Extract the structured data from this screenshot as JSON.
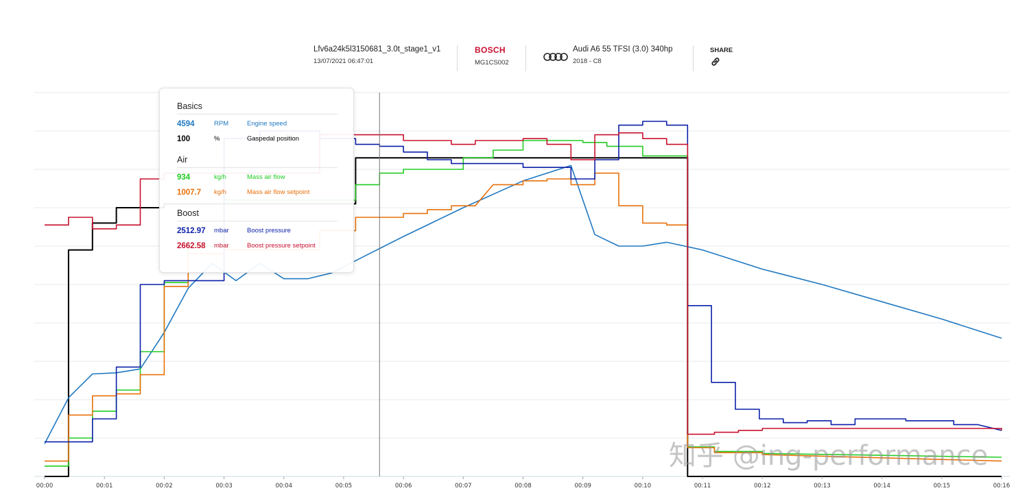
{
  "header": {
    "file_name": "Lfv6a24k5l3150681_3.0t_stage1_v1",
    "date": "13/07/2021 06:47:01",
    "ecu_brand": "BOSCH",
    "ecu_model": "MG1CS002",
    "car_name": "Audi A6 55 TFSI (3.0) 340hp",
    "car_sub": "2018 - C8",
    "share_label": "SHARE",
    "share_icon": "link-icon",
    "brand_icon": "audi-rings-icon"
  },
  "tooltip": {
    "sections": [
      {
        "title": "Basics",
        "rows": [
          {
            "value": "4594",
            "unit": "RPM",
            "name": "Engine speed",
            "color": "#1f78c1"
          },
          {
            "value": "100",
            "unit": "%",
            "name": "Gaspedal position",
            "color": "#000000"
          }
        ]
      },
      {
        "title": "Air",
        "rows": [
          {
            "value": "934",
            "unit": "kg/h",
            "name": "Mass air flow",
            "color": "#22cc22"
          },
          {
            "value": "1007.7",
            "unit": "kg/h",
            "name": "Mass air flow setpoint",
            "color": "#e8700a"
          }
        ]
      },
      {
        "title": "Boost",
        "rows": [
          {
            "value": "2512.97",
            "unit": "mbar",
            "name": "Boost pressure",
            "color": "#0a1fa8"
          },
          {
            "value": "2662.58",
            "unit": "mbar",
            "name": "Boost pressure setpoint",
            "color": "#c8102e"
          }
        ]
      }
    ]
  },
  "watermark": "知乎 @ing-performance",
  "chart_data": {
    "type": "line",
    "title": "",
    "xlabel": "",
    "ylabel": "",
    "x_range": [
      0,
      16
    ],
    "y_range": [
      0,
      100
    ],
    "grid": true,
    "cursor_x": 5.6,
    "x_ticks": [
      "00:00",
      "00:01",
      "00:02",
      "00:03",
      "00:04",
      "00:05",
      "00:06",
      "00:07",
      "00:08",
      "00:09",
      "00:10",
      "00:11",
      "00:12",
      "00:13",
      "00:14",
      "00:15",
      "00:16"
    ],
    "series": [
      {
        "name": "Gaspedal position",
        "color": "#000000",
        "step": true,
        "points": [
          [
            0,
            0
          ],
          [
            0.4,
            0
          ],
          [
            0.4,
            59
          ],
          [
            0.8,
            59
          ],
          [
            0.8,
            66
          ],
          [
            1.2,
            66
          ],
          [
            1.2,
            70
          ],
          [
            2,
            70
          ],
          [
            2,
            71
          ],
          [
            5.2,
            71
          ],
          [
            5.2,
            83
          ],
          [
            10.75,
            83
          ],
          [
            10.75,
            0
          ],
          [
            16,
            0
          ]
        ]
      },
      {
        "name": "Engine speed",
        "color": "#1f78c1",
        "step": false,
        "points": [
          [
            0,
            8.5
          ],
          [
            0.4,
            20.5
          ],
          [
            0.8,
            26.7
          ],
          [
            1.2,
            27
          ],
          [
            1.6,
            28
          ],
          [
            2,
            37.5
          ],
          [
            2.4,
            49
          ],
          [
            2.8,
            55.5
          ],
          [
            3.2,
            51
          ],
          [
            3.6,
            55.5
          ],
          [
            4,
            51.5
          ],
          [
            4.4,
            51.5
          ],
          [
            4.8,
            53
          ],
          [
            5.3,
            57
          ],
          [
            6,
            62.5
          ],
          [
            7,
            70
          ],
          [
            8,
            77
          ],
          [
            8.8,
            81
          ],
          [
            9.2,
            63
          ],
          [
            9.6,
            60
          ],
          [
            10,
            60
          ],
          [
            10.4,
            61
          ],
          [
            11,
            59
          ],
          [
            12,
            54
          ],
          [
            13,
            50
          ],
          [
            14,
            45.5
          ],
          [
            15,
            41
          ],
          [
            16,
            36
          ]
        ]
      },
      {
        "name": "Mass air flow",
        "color": "#22cc22",
        "step": true,
        "points": [
          [
            0,
            2.7
          ],
          [
            0.4,
            2.7
          ],
          [
            0.4,
            10
          ],
          [
            0.8,
            10
          ],
          [
            0.8,
            17
          ],
          [
            1.2,
            17
          ],
          [
            1.2,
            22.5
          ],
          [
            1.6,
            22.5
          ],
          [
            1.6,
            32.5
          ],
          [
            2,
            32.5
          ],
          [
            2,
            50.5
          ],
          [
            2.4,
            50.5
          ],
          [
            2.4,
            60
          ],
          [
            3,
            60
          ],
          [
            3,
            72
          ],
          [
            5.2,
            72
          ],
          [
            5.2,
            76
          ],
          [
            5.6,
            76
          ],
          [
            5.6,
            79
          ],
          [
            6,
            79
          ],
          [
            6,
            80
          ],
          [
            7,
            80
          ],
          [
            7,
            83
          ],
          [
            7.5,
            83
          ],
          [
            7.5,
            85
          ],
          [
            8,
            85
          ],
          [
            8,
            87.5
          ],
          [
            9,
            87.5
          ],
          [
            9,
            87
          ],
          [
            9.4,
            87
          ],
          [
            9.4,
            86
          ],
          [
            10,
            86
          ],
          [
            10,
            83.5
          ],
          [
            10.75,
            83.5
          ],
          [
            10.75,
            7.7
          ],
          [
            11.2,
            7.7
          ],
          [
            11.2,
            6.5
          ],
          [
            12,
            6.5
          ],
          [
            12,
            6
          ],
          [
            16,
            5
          ]
        ]
      },
      {
        "name": "Mass air flow setpoint",
        "color": "#e8700a",
        "step": true,
        "points": [
          [
            0,
            4
          ],
          [
            0.4,
            4
          ],
          [
            0.4,
            16
          ],
          [
            0.8,
            16
          ],
          [
            0.8,
            21
          ],
          [
            1.2,
            21
          ],
          [
            1.2,
            21.5
          ],
          [
            1.6,
            21.5
          ],
          [
            1.6,
            26.5
          ],
          [
            2,
            26.5
          ],
          [
            2,
            49.5
          ],
          [
            2.4,
            49.5
          ],
          [
            2.4,
            58
          ],
          [
            3,
            58
          ],
          [
            3,
            59
          ],
          [
            4.6,
            59
          ],
          [
            4.6,
            64
          ],
          [
            5.2,
            64
          ],
          [
            5.2,
            67.5
          ],
          [
            5.6,
            67.5
          ],
          [
            5.6,
            67.5
          ],
          [
            6,
            67.5
          ],
          [
            6,
            68.5
          ],
          [
            6.4,
            68.5
          ],
          [
            6.4,
            69.5
          ],
          [
            6.8,
            69.5
          ],
          [
            6.8,
            70.5
          ],
          [
            7.2,
            70.5
          ],
          [
            7.5,
            76
          ],
          [
            8,
            76
          ],
          [
            8,
            77
          ],
          [
            8.4,
            77
          ],
          [
            8.4,
            77.5
          ],
          [
            8.8,
            77.5
          ],
          [
            8.8,
            76
          ],
          [
            9.2,
            76
          ],
          [
            9.2,
            79
          ],
          [
            9.6,
            79
          ],
          [
            9.6,
            70.5
          ],
          [
            10,
            70.5
          ],
          [
            10,
            66
          ],
          [
            10.4,
            66
          ],
          [
            10.4,
            65.5
          ],
          [
            10.75,
            65.5
          ],
          [
            10.75,
            7.5
          ],
          [
            11.2,
            7.5
          ],
          [
            11.2,
            6.2
          ],
          [
            12,
            6.2
          ],
          [
            12,
            5.7
          ],
          [
            16,
            4
          ]
        ]
      },
      {
        "name": "Boost pressure",
        "color": "#0a1fa8",
        "step": true,
        "points": [
          [
            0,
            9
          ],
          [
            0.8,
            9
          ],
          [
            0.8,
            15
          ],
          [
            1.2,
            15
          ],
          [
            1.2,
            28.5
          ],
          [
            1.6,
            28.5
          ],
          [
            1.6,
            50
          ],
          [
            2,
            50
          ],
          [
            2,
            51
          ],
          [
            3,
            51
          ],
          [
            3,
            88
          ],
          [
            3.6,
            88
          ],
          [
            3.6,
            90
          ],
          [
            4.6,
            90
          ],
          [
            4.6,
            88
          ],
          [
            5.2,
            88
          ],
          [
            5.2,
            86.5
          ],
          [
            5.6,
            86.5
          ],
          [
            5.6,
            86
          ],
          [
            6,
            86
          ],
          [
            6,
            84.5
          ],
          [
            6.4,
            84.5
          ],
          [
            6.4,
            82.5
          ],
          [
            6.8,
            82.5
          ],
          [
            6.8,
            81.5
          ],
          [
            7.2,
            81.5
          ],
          [
            7.2,
            81.5
          ],
          [
            8,
            81.5
          ],
          [
            8,
            80.5
          ],
          [
            8.8,
            80.5
          ],
          [
            8.8,
            77.5
          ],
          [
            9.2,
            77.5
          ],
          [
            9.2,
            82.5
          ],
          [
            9.6,
            82.5
          ],
          [
            9.6,
            91.5
          ],
          [
            10,
            91.5
          ],
          [
            10,
            92.5
          ],
          [
            10.4,
            92.5
          ],
          [
            10.4,
            91.5
          ],
          [
            10.75,
            91.5
          ],
          [
            10.75,
            44.5
          ],
          [
            11.15,
            44.5
          ],
          [
            11.15,
            24.5
          ],
          [
            11.55,
            24.5
          ],
          [
            11.55,
            17.5
          ],
          [
            11.95,
            17.5
          ],
          [
            11.95,
            15
          ],
          [
            12.35,
            15
          ],
          [
            12.35,
            14
          ],
          [
            12.75,
            14
          ],
          [
            12.75,
            14.5
          ],
          [
            13.15,
            14.5
          ],
          [
            13.15,
            13.5
          ],
          [
            13.55,
            13.5
          ],
          [
            13.55,
            15
          ],
          [
            14.4,
            15
          ],
          [
            14.4,
            14.5
          ],
          [
            15.2,
            14.5
          ],
          [
            15.2,
            13.5
          ],
          [
            15.6,
            13.5
          ],
          [
            15.6,
            13.5
          ],
          [
            16,
            12
          ]
        ]
      },
      {
        "name": "Boost pressure setpoint",
        "color": "#c8102e",
        "step": true,
        "points": [
          [
            0,
            65.5
          ],
          [
            0.4,
            65.5
          ],
          [
            0.4,
            67.5
          ],
          [
            0.8,
            67.5
          ],
          [
            0.8,
            64.5
          ],
          [
            1.2,
            64.5
          ],
          [
            1.2,
            65.5
          ],
          [
            1.6,
            65.5
          ],
          [
            1.6,
            77.5
          ],
          [
            2,
            77.5
          ],
          [
            2,
            79
          ],
          [
            4.6,
            79
          ],
          [
            4.6,
            89
          ],
          [
            6,
            89
          ],
          [
            6,
            87.5
          ],
          [
            6.8,
            87.5
          ],
          [
            6.8,
            86.5
          ],
          [
            7.2,
            86.5
          ],
          [
            7.2,
            87.5
          ],
          [
            8,
            87.5
          ],
          [
            8,
            88
          ],
          [
            8.4,
            88
          ],
          [
            8.4,
            86.5
          ],
          [
            8.8,
            86.5
          ],
          [
            8.8,
            82.5
          ],
          [
            9.2,
            82.5
          ],
          [
            9.2,
            89
          ],
          [
            9.6,
            89
          ],
          [
            9.6,
            89.5
          ],
          [
            10,
            89.5
          ],
          [
            10,
            88
          ],
          [
            10.4,
            88
          ],
          [
            10.4,
            86.5
          ],
          [
            10.75,
            86.5
          ],
          [
            10.75,
            11
          ],
          [
            11.2,
            11
          ],
          [
            11.2,
            11.5
          ],
          [
            11.6,
            11.5
          ],
          [
            11.6,
            12
          ],
          [
            12,
            12
          ],
          [
            12,
            12.5
          ],
          [
            16,
            12.5
          ],
          [
            16,
            12
          ]
        ]
      }
    ]
  }
}
